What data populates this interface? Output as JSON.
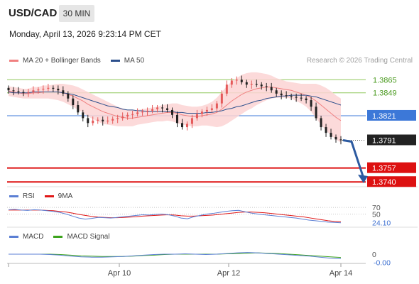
{
  "header": {
    "symbol": "USD/CAD",
    "timeframe": "30 MIN",
    "datetime": "Monday, April 13, 2026 9:23:14 PM CET",
    "credit": "Research © 2026 Trading Central"
  },
  "legends": {
    "main": [
      {
        "label": "MA 20 + Bollinger Bands",
        "color": "#f08080"
      },
      {
        "label": "MA 50",
        "color": "#2c4f8c"
      }
    ],
    "rsi": [
      {
        "label": "RSI",
        "color": "#5b7fd4"
      },
      {
        "label": "9MA",
        "color": "#e01818"
      }
    ],
    "macd": [
      {
        "label": "MACD",
        "color": "#5b7fd4"
      },
      {
        "label": "MACD Signal",
        "color": "#3ca31c"
      }
    ]
  },
  "colors": {
    "up_candle": "#e55a5a",
    "down_candle": "#222222",
    "band_fill": "#fbd3d3",
    "resistance": "#8fc75a",
    "pivot": "#3c78d8",
    "support": "#dd1111",
    "price_label_bg": "#222222",
    "forecast_arrow": "#2c5aa0"
  },
  "chart_data": [
    {
      "type": "candlestick",
      "title": "USD/CAD 30 MIN",
      "x_ticks": [
        "Apr 10",
        "Apr 12",
        "Apr 14"
      ],
      "ylim": [
        1.3735,
        1.388
      ],
      "levels": [
        {
          "value": 1.3865,
          "label": "1.3865",
          "kind": "resistance"
        },
        {
          "value": 1.3849,
          "label": "1.3849",
          "kind": "resistance"
        },
        {
          "value": 1.3821,
          "label": "1.3821",
          "kind": "pivot"
        },
        {
          "value": 1.3791,
          "label": "1.3791",
          "kind": "last"
        },
        {
          "value": 1.3757,
          "label": "1.3757",
          "kind": "support"
        },
        {
          "value": 1.374,
          "label": "1.3740",
          "kind": "support"
        }
      ],
      "close": [
        1.3852,
        1.3851,
        1.385,
        1.3849,
        1.385,
        1.3852,
        1.3853,
        1.3854,
        1.3855,
        1.3854,
        1.3852,
        1.3848,
        1.3842,
        1.3834,
        1.3825,
        1.3818,
        1.3812,
        1.3815,
        1.3816,
        1.3814,
        1.3815,
        1.3817,
        1.3818,
        1.382,
        1.3822,
        1.3823,
        1.3825,
        1.3826,
        1.3827,
        1.3829,
        1.3831,
        1.383,
        1.3828,
        1.3822,
        1.3812,
        1.3807,
        1.3811,
        1.3818,
        1.3823,
        1.3826,
        1.3828,
        1.383,
        1.3836,
        1.3848,
        1.3859,
        1.3864,
        1.3865,
        1.3862,
        1.3859,
        1.386,
        1.3859,
        1.3857,
        1.3856,
        1.3852,
        1.3848,
        1.3846,
        1.3845,
        1.3844,
        1.3843,
        1.3842,
        1.384,
        1.3832,
        1.3818,
        1.3807,
        1.38,
        1.3795,
        1.3792,
        1.3791
      ],
      "ma20": [
        1.3851,
        1.385,
        1.3849,
        1.3848,
        1.3848,
        1.3849,
        1.3849,
        1.385,
        1.385,
        1.385,
        1.385,
        1.3849,
        1.3847,
        1.3845,
        1.3842,
        1.3839,
        1.3835,
        1.3832,
        1.3829,
        1.3826,
        1.3824,
        1.3822,
        1.382,
        1.3819,
        1.3818,
        1.3818,
        1.3819,
        1.382,
        1.3821,
        1.3822,
        1.3823,
        1.3824,
        1.3825,
        1.3825,
        1.3824,
        1.3822,
        1.3821,
        1.382,
        1.382,
        1.3821,
        1.3822,
        1.3823,
        1.3825,
        1.3829,
        1.3834,
        1.3839,
        1.3843,
        1.3847,
        1.385,
        1.3852,
        1.3854,
        1.3855,
        1.3856,
        1.3856,
        1.3855,
        1.3854,
        1.3853,
        1.3852,
        1.385,
        1.3848,
        1.3846,
        1.3843,
        1.3839,
        1.3834,
        1.3829,
        1.3824,
        1.3819,
        1.3815
      ],
      "ma50": [
        1.385,
        1.3849,
        1.3849,
        1.3849,
        1.3849,
        1.385,
        1.385,
        1.385,
        1.385,
        1.385,
        1.385,
        1.3849,
        1.3848,
        1.3847,
        1.3845,
        1.3843,
        1.3841,
        1.3839,
        1.3837,
        1.3835,
        1.3833,
        1.3832,
        1.3831,
        1.3829,
        1.3828,
        1.3828,
        1.3827,
        1.3827,
        1.3826,
        1.3826,
        1.3826,
        1.3826,
        1.3826,
        1.3826,
        1.3825,
        1.3825,
        1.3824,
        1.3824,
        1.3824,
        1.3824,
        1.3825,
        1.3825,
        1.3826,
        1.3827,
        1.3829,
        1.383,
        1.3832,
        1.3833,
        1.3835,
        1.3837,
        1.3839,
        1.384,
        1.3842,
        1.3843,
        1.3844,
        1.3845,
        1.3845,
        1.3846,
        1.3846,
        1.3846,
        1.3846,
        1.3845,
        1.3844,
        1.3842,
        1.384,
        1.3838,
        1.3836,
        1.3834
      ],
      "bb_width": [
        0.0006,
        0.0006,
        0.0006,
        0.0006,
        0.0006,
        0.0007,
        0.0007,
        0.0008,
        0.0008,
        0.0009,
        0.001,
        0.0011,
        0.0012,
        0.0013,
        0.0014,
        0.0014,
        0.0015,
        0.0015,
        0.0015,
        0.0015,
        0.0014,
        0.0013,
        0.0012,
        0.0011,
        0.001,
        0.001,
        0.0009,
        0.0009,
        0.0009,
        0.0009,
        0.0009,
        0.001,
        0.001,
        0.0011,
        0.0012,
        0.0012,
        0.0012,
        0.0012,
        0.0012,
        0.0012,
        0.0013,
        0.0015,
        0.0018,
        0.0021,
        0.0023,
        0.0024,
        0.0024,
        0.0024,
        0.0023,
        0.0022,
        0.002,
        0.0018,
        0.0016,
        0.0014,
        0.0012,
        0.0011,
        0.001,
        0.001,
        0.0011,
        0.0012,
        0.0014,
        0.0017,
        0.0021,
        0.0024,
        0.0026,
        0.0027,
        0.0027,
        0.0027
      ],
      "forecast": {
        "from": 1.3791,
        "to": 1.3742
      }
    },
    {
      "type": "line",
      "title": "RSI",
      "ylim": [
        15,
        85
      ],
      "levels": [
        {
          "value": 70,
          "label": "70"
        },
        {
          "value": 50,
          "label": "50"
        },
        {
          "value": 24.1,
          "label": "24.10"
        }
      ],
      "series": [
        {
          "name": "RSI",
          "values": [
            63,
            64,
            62,
            61,
            63,
            62,
            60,
            58,
            55,
            50,
            44,
            38,
            35,
            37,
            40,
            39,
            38,
            40,
            42,
            44,
            46,
            48,
            47,
            49,
            50,
            48,
            44,
            38,
            36,
            42,
            46,
            50,
            52,
            55,
            58,
            60,
            61,
            57,
            53,
            50,
            48,
            46,
            44,
            42,
            40,
            38,
            35,
            32,
            30,
            28,
            26,
            25,
            24.1
          ]
        },
        {
          "name": "9MA",
          "values": [
            62,
            62,
            62,
            62,
            62,
            62,
            61,
            60,
            58,
            56,
            53,
            49,
            46,
            43,
            41,
            40,
            39,
            39,
            40,
            41,
            42,
            44,
            45,
            46,
            47,
            48,
            47,
            45,
            44,
            44,
            45,
            46,
            47,
            49,
            51,
            53,
            55,
            56,
            56,
            55,
            54,
            52,
            50,
            48,
            46,
            44,
            42,
            39,
            36,
            33,
            30,
            28,
            27
          ]
        }
      ]
    },
    {
      "type": "line",
      "title": "MACD",
      "ylim": [
        -0.003,
        0.003
      ],
      "levels": [
        {
          "value": 0,
          "label": "0"
        },
        {
          "value": -0.0003,
          "label": "-0.00"
        }
      ],
      "series": [
        {
          "name": "MACD",
          "values": [
            0.0,
            0.0,
            0.0,
            0.0,
            -0.0001,
            -0.0003,
            -0.0006,
            -0.0008,
            -0.0009,
            -0.0009,
            -0.0008,
            -0.0007,
            -0.0005,
            -0.0003,
            -0.0001,
            0.0,
            0.0,
            0.0001,
            0.0,
            -0.0001,
            0.0,
            0.0002,
            0.0004,
            0.0005,
            0.0004,
            0.0002,
            0.0,
            -0.0002,
            -0.0004,
            -0.0006,
            -0.0009,
            -0.0012,
            -0.0014
          ]
        },
        {
          "name": "MACD Signal",
          "values": [
            0.0,
            0.0,
            0.0,
            0.0,
            0.0,
            -0.0001,
            -0.0003,
            -0.0005,
            -0.0006,
            -0.0007,
            -0.0007,
            -0.0007,
            -0.0006,
            -0.0004,
            -0.0003,
            -0.0001,
            0.0,
            0.0,
            0.0,
            0.0,
            0.0,
            0.0001,
            0.0002,
            0.0003,
            0.0004,
            0.0003,
            0.0002,
            0.0,
            -0.0002,
            -0.0004,
            -0.0006,
            -0.0008,
            -0.001
          ]
        }
      ]
    }
  ]
}
